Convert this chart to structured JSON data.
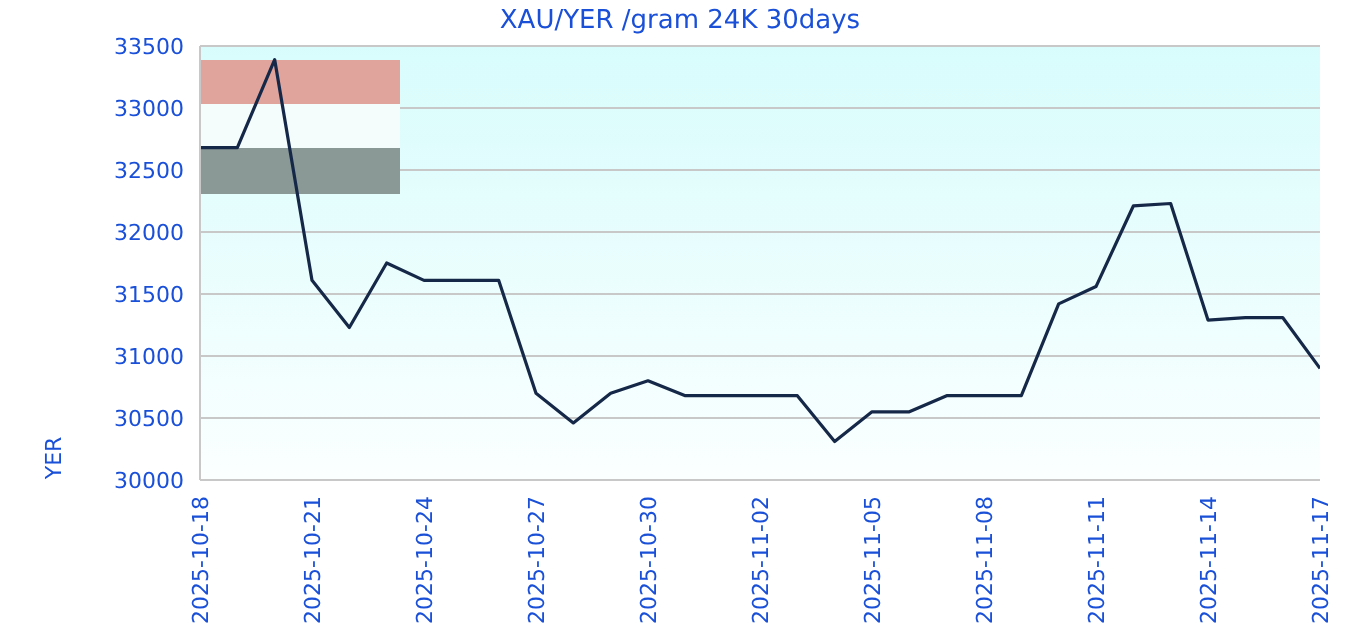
{
  "chart_data": {
    "type": "line",
    "title": "XAU/YER /gram 24K 30days",
    "ylabel": "YER",
    "x": [
      "2025-10-18",
      "2025-10-19",
      "2025-10-20",
      "2025-10-21",
      "2025-10-22",
      "2025-10-23",
      "2025-10-24",
      "2025-10-25",
      "2025-10-26",
      "2025-10-27",
      "2025-10-28",
      "2025-10-29",
      "2025-10-30",
      "2025-10-31",
      "2025-11-01",
      "2025-11-02",
      "2025-11-03",
      "2025-11-04",
      "2025-11-05",
      "2025-11-06",
      "2025-11-07",
      "2025-11-08",
      "2025-11-09",
      "2025-11-10",
      "2025-11-11",
      "2025-11-12",
      "2025-11-13",
      "2025-11-14",
      "2025-11-15",
      "2025-11-16",
      "2025-11-17"
    ],
    "series": [
      {
        "color": "#162848",
        "values": [
          32680,
          32680,
          33390,
          31610,
          31230,
          31750,
          31610,
          31610,
          31610,
          30700,
          30460,
          30700,
          30800,
          30680,
          30680,
          30680,
          30680,
          30310,
          30550,
          30550,
          30680,
          30680,
          30680,
          31420,
          31560,
          32210,
          32230,
          31290,
          31310,
          31310,
          30900
        ]
      }
    ],
    "xlim": [
      "2025-10-18",
      "2025-11-17"
    ],
    "xticks": [
      "2025-10-18",
      "2025-10-21",
      "2025-10-24",
      "2025-10-27",
      "2025-10-30",
      "2025-11-02",
      "2025-11-05",
      "2025-11-08",
      "2025-11-11",
      "2025-11-14",
      "2025-11-17"
    ],
    "ylim": [
      30000,
      33500
    ],
    "yticks": [
      30000,
      30500,
      31000,
      31500,
      32000,
      32500,
      33000,
      33500
    ],
    "grid": "y",
    "marker": "none",
    "line_style": "solid"
  }
}
